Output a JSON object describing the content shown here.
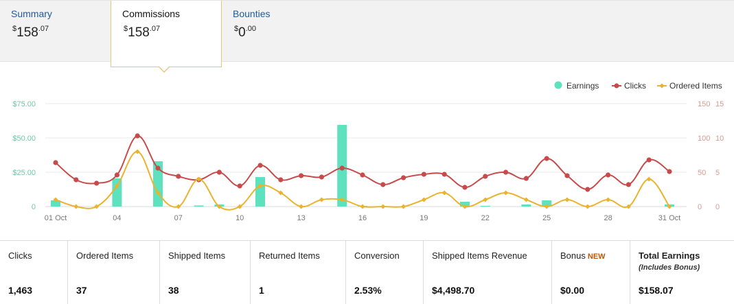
{
  "tabs": [
    {
      "name": "Summary",
      "currency": "$",
      "whole": "158",
      "cents": ".07"
    },
    {
      "name": "Commissions",
      "currency": "$",
      "whole": "158",
      "cents": ".07"
    },
    {
      "name": "Bounties",
      "currency": "$",
      "whole": "0",
      "cents": ".00"
    }
  ],
  "colors": {
    "earnings": "#5ee1be",
    "clicks": "#c94a4a",
    "ordered": "#e9b32e",
    "link": "#1e5a9c",
    "active_border": "#e5c77b"
  },
  "chart_data": {
    "type": "bar+line",
    "legend": [
      "Earnings",
      "Clicks",
      "Ordered Items"
    ],
    "legend_position": "top-right",
    "x_tick_labels": [
      "01 Oct",
      "04",
      "07",
      "10",
      "13",
      "16",
      "19",
      "22",
      "25",
      "28",
      "31 Oct"
    ],
    "x": [
      "01 Oct",
      "02",
      "03",
      "04",
      "05",
      "06",
      "07",
      "08",
      "09",
      "10",
      "11",
      "12",
      "13",
      "14",
      "15",
      "16",
      "17",
      "18",
      "19",
      "20",
      "21",
      "22",
      "23",
      "24",
      "25",
      "26",
      "27",
      "28",
      "29",
      "30",
      "31 Oct"
    ],
    "y_left": {
      "ticks": [
        "$75.00",
        "$50.00",
        "$25.00",
        "0"
      ],
      "ylim": [
        0,
        75
      ]
    },
    "y_right_clicks": {
      "ticks": [
        "150",
        "100",
        "50",
        "0"
      ],
      "ylim": [
        0,
        150
      ]
    },
    "y_right_ordered": {
      "ticks": [
        "15",
        "10",
        "5",
        "0"
      ],
      "ylim": [
        0,
        15
      ]
    },
    "grid": true,
    "series": [
      {
        "name": "Earnings",
        "type": "bar",
        "axis": "left",
        "values": [
          4.5,
          0,
          0,
          20.5,
          0,
          33,
          0,
          0.8,
          1.5,
          0,
          21.5,
          0,
          0,
          0,
          59.5,
          0.5,
          0,
          0,
          0,
          0,
          3.5,
          0.5,
          0,
          1.5,
          4.5,
          0,
          0,
          0,
          0,
          0,
          1.5
        ]
      },
      {
        "name": "Clicks",
        "type": "line",
        "axis": "right_clicks",
        "values": [
          64,
          39,
          34,
          46,
          103,
          56,
          44,
          39,
          50,
          30,
          60,
          39,
          45,
          43,
          56,
          46,
          32,
          42,
          47,
          47,
          28,
          44,
          50,
          41,
          70,
          45,
          25,
          46,
          32,
          68,
          51
        ]
      },
      {
        "name": "Ordered Items",
        "type": "line",
        "axis": "right_ordered",
        "values": [
          1,
          0,
          0,
          3,
          8,
          2,
          0,
          4,
          0,
          0,
          3,
          2,
          0,
          1,
          1,
          0,
          0,
          0,
          1,
          2,
          0,
          1,
          2,
          1,
          0,
          1,
          0,
          1,
          0,
          4,
          0
        ]
      }
    ]
  },
  "stats": [
    {
      "label": "Clicks",
      "value": "1,463"
    },
    {
      "label": "Ordered Items",
      "value": "37"
    },
    {
      "label": "Shipped Items",
      "value": "38"
    },
    {
      "label": "Returned Items",
      "value": "1"
    },
    {
      "label": "Conversion",
      "value": "2.53%"
    },
    {
      "label": "Shipped Items Revenue",
      "value": "$4,498.70"
    },
    {
      "label": "Bonus",
      "badge": "NEW",
      "value": "$0.00"
    },
    {
      "label": "Total Earnings",
      "sublabel": "(Includes Bonus)",
      "value": "$158.07"
    }
  ]
}
